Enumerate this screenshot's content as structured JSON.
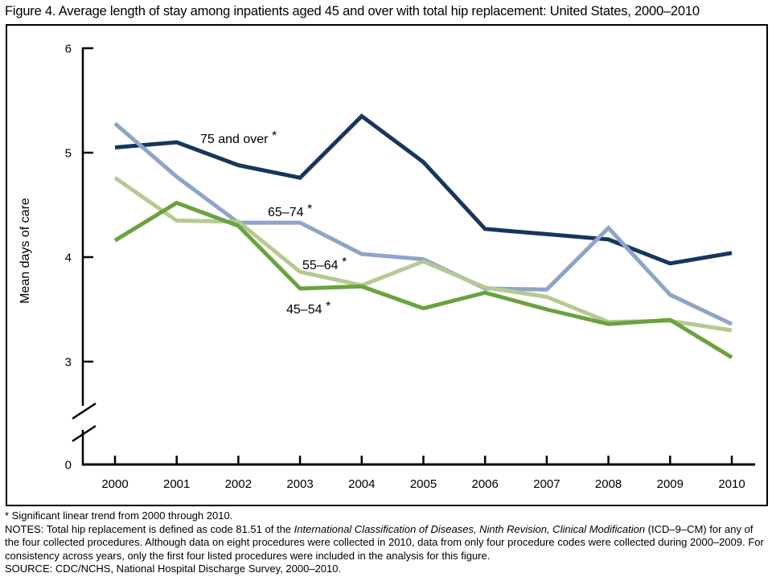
{
  "title": "Figure 4. Average length of stay among inpatients aged 45 and over with total hip replacement: United States, 2000–2010",
  "chart_data": {
    "type": "line",
    "title": "Figure 4. Average length of stay among inpatients aged 45 and over with total hip replacement: United States, 2000–2010",
    "xlabel": "",
    "ylabel": "Mean days of care",
    "x": [
      2000,
      2001,
      2002,
      2003,
      2004,
      2005,
      2006,
      2007,
      2008,
      2009,
      2010
    ],
    "yticks": [
      6,
      5,
      4,
      3,
      0
    ],
    "ylim": [
      0,
      6
    ],
    "axis_break_between_0_and_3": true,
    "grid": false,
    "legend_position": "inline-labels-on-lines",
    "units": "mean days of care",
    "series": [
      {
        "name": "75 and over*",
        "color": "#17365d",
        "values": [
          5.05,
          5.1,
          4.88,
          4.76,
          5.35,
          4.91,
          4.27,
          4.22,
          4.17,
          3.94,
          4.04
        ]
      },
      {
        "name": "65–74*",
        "color": "#8fa4c9",
        "values": [
          5.28,
          4.77,
          4.33,
          4.33,
          4.03,
          3.98,
          3.7,
          3.69,
          4.28,
          3.64,
          3.36
        ]
      },
      {
        "name": "55–64*",
        "color": "#b5ca92",
        "values": [
          4.76,
          4.35,
          4.34,
          3.86,
          3.73,
          3.96,
          3.71,
          3.62,
          3.38,
          3.39,
          3.3
        ]
      },
      {
        "name": "45–54*",
        "color": "#6aa33e",
        "values": [
          4.16,
          4.52,
          4.3,
          3.7,
          3.72,
          3.51,
          3.66,
          3.5,
          3.36,
          3.4,
          3.04
        ]
      }
    ]
  },
  "footnotes": {
    "significance": "* Significant linear trend from 2000 through 2010.",
    "notes_prefix": "NOTES: Total hip replacement is defined as code 81.51 of the ",
    "notes_italic": "International Classification of Diseases, Ninth Revision, Clinical Modification",
    "notes_suffix": " (ICD–9–CM) for any of the four collected procedures. Although data on eight procedures were collected in 2010, data from only four procedure codes were collected during 2000–2009. For consistency across years, only the first four listed procedures were included in the analysis for this figure.",
    "source": "SOURCE: CDC/NCHS, National Hospital Discharge Survey, 2000–2010."
  }
}
